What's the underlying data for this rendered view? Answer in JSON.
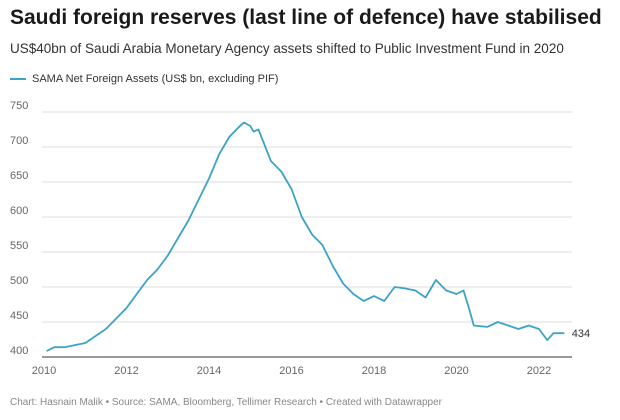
{
  "header": {
    "title": "Saudi foreign reserves (last line of defence) have stabilised",
    "subtitle": "US$40bn of Saudi Arabia Monetary Agency assets shifted to Public Investment Fund in 2020"
  },
  "footer": {
    "credit": "Chart: Hasnain Malik • Source: SAMA, Bloomberg, Tellimer Research • Created with Datawrapper"
  },
  "colors": {
    "line": "#3ba3c7",
    "grid": "#dddddd",
    "baseline": "#333333"
  },
  "chart_data": {
    "type": "line",
    "title": "Saudi foreign reserves (last line of defence) have stabilised",
    "subtitle": "US$40bn of Saudi Arabia Monetary Agency assets shifted to Public Investment Fund in 2020",
    "xlim": [
      2010,
      2022.8
    ],
    "ylim": [
      400,
      750
    ],
    "x_ticks": [
      "2010",
      "2012",
      "2014",
      "2016",
      "2018",
      "2020",
      "2022"
    ],
    "y_ticks": [
      "400",
      "450",
      "500",
      "550",
      "600",
      "650",
      "700",
      "750"
    ],
    "grid": true,
    "legend_position": "top-left",
    "end_label": "434",
    "series": [
      {
        "name": "SAMA Net Foreign Assets (US$ bn, excluding PIF)",
        "points": [
          [
            2010.08,
            409
          ],
          [
            2010.25,
            414
          ],
          [
            2010.5,
            414
          ],
          [
            2010.75,
            417
          ],
          [
            2011.0,
            420
          ],
          [
            2011.25,
            430
          ],
          [
            2011.5,
            440
          ],
          [
            2011.75,
            455
          ],
          [
            2012.0,
            470
          ],
          [
            2012.25,
            490
          ],
          [
            2012.5,
            510
          ],
          [
            2012.75,
            525
          ],
          [
            2013.0,
            545
          ],
          [
            2013.25,
            570
          ],
          [
            2013.5,
            595
          ],
          [
            2013.75,
            625
          ],
          [
            2014.0,
            655
          ],
          [
            2014.25,
            690
          ],
          [
            2014.5,
            715
          ],
          [
            2014.75,
            730
          ],
          [
            2014.85,
            735
          ],
          [
            2015.0,
            730
          ],
          [
            2015.08,
            722
          ],
          [
            2015.2,
            725
          ],
          [
            2015.3,
            710
          ],
          [
            2015.5,
            680
          ],
          [
            2015.75,
            665
          ],
          [
            2016.0,
            640
          ],
          [
            2016.25,
            600
          ],
          [
            2016.5,
            575
          ],
          [
            2016.75,
            560
          ],
          [
            2017.0,
            530
          ],
          [
            2017.25,
            505
          ],
          [
            2017.5,
            490
          ],
          [
            2017.75,
            480
          ],
          [
            2018.0,
            487
          ],
          [
            2018.25,
            480
          ],
          [
            2018.5,
            500
          ],
          [
            2018.75,
            498
          ],
          [
            2019.0,
            495
          ],
          [
            2019.25,
            485
          ],
          [
            2019.5,
            510
          ],
          [
            2019.75,
            495
          ],
          [
            2020.0,
            490
          ],
          [
            2020.17,
            495
          ],
          [
            2020.3,
            470
          ],
          [
            2020.42,
            445
          ],
          [
            2020.75,
            443
          ],
          [
            2021.0,
            450
          ],
          [
            2021.25,
            445
          ],
          [
            2021.5,
            440
          ],
          [
            2021.75,
            445
          ],
          [
            2022.0,
            440
          ],
          [
            2022.2,
            424
          ],
          [
            2022.35,
            434
          ],
          [
            2022.6,
            434
          ]
        ]
      }
    ]
  }
}
